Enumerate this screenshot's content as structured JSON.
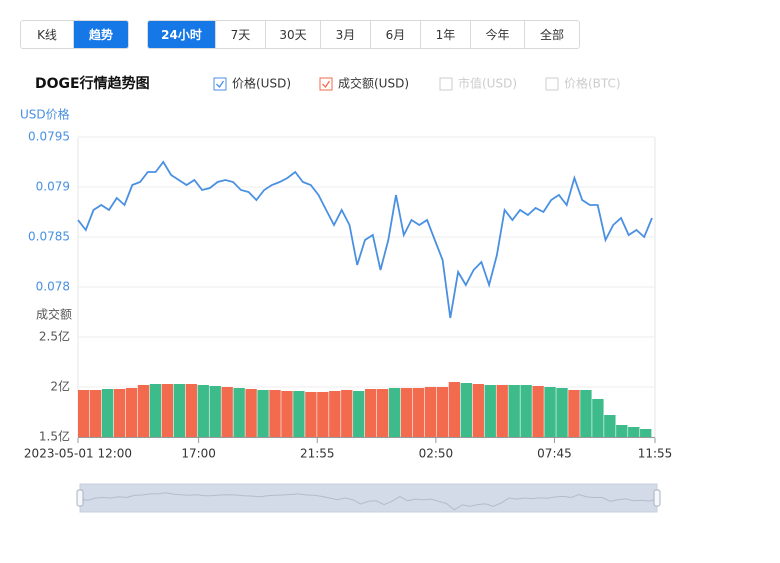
{
  "mode_tabs": [
    "K线",
    "趋势"
  ],
  "range_tabs": [
    "24小时",
    "7天",
    "30天",
    "3月",
    "6月",
    "1年",
    "今年",
    "全部"
  ],
  "title": "DOGE行情趋势图",
  "legend": [
    {
      "label": "价格(USD)",
      "checked": true,
      "color": "#4a90e2"
    },
    {
      "label": "成交额(USD)",
      "checked": true,
      "color": "#f26b4f"
    },
    {
      "label": "市值(USD)",
      "checked": false,
      "color": "#cccccc"
    },
    {
      "label": "价格(BTC)",
      "checked": false,
      "color": "#cccccc"
    }
  ],
  "chart_data": [
    {
      "type": "line",
      "ylabel": "USD价格",
      "color": "#4a90e2",
      "ylim": [
        0.0775,
        0.0795
      ],
      "yticks": [
        0.0795,
        0.079,
        0.0785,
        0.078
      ],
      "grid": true,
      "values": [
        0.07867,
        0.07857,
        0.07877,
        0.07882,
        0.07877,
        0.07889,
        0.07882,
        0.07902,
        0.07905,
        0.07915,
        0.07915,
        0.07925,
        0.07912,
        0.07907,
        0.07902,
        0.07907,
        0.07897,
        0.07899,
        0.07905,
        0.07907,
        0.07905,
        0.07897,
        0.07895,
        0.07887,
        0.07897,
        0.07902,
        0.07905,
        0.07909,
        0.07915,
        0.07905,
        0.07902,
        0.07892,
        0.07877,
        0.07862,
        0.07877,
        0.07862,
        0.07822,
        0.07847,
        0.07852,
        0.07817,
        0.07847,
        0.07892,
        0.07852,
        0.07867,
        0.07862,
        0.07867,
        0.07847,
        0.07827,
        0.07769,
        0.07815,
        0.07802,
        0.07817,
        0.07825,
        0.07802,
        0.07832,
        0.07877,
        0.07867,
        0.07877,
        0.07872,
        0.07879,
        0.07875,
        0.07887,
        0.07892,
        0.07882,
        0.07909,
        0.07887,
        0.07882,
        0.07882,
        0.07847,
        0.07862,
        0.07869,
        0.07852,
        0.07857,
        0.0785,
        0.07869
      ]
    },
    {
      "type": "bar",
      "ylabel": "成交额",
      "ylim": [
        1.5,
        2.5
      ],
      "yticks": [
        {
          "value": 2.5,
          "label": "2.5亿"
        },
        {
          "value": 2,
          "label": "2亿"
        },
        {
          "value": 1.5,
          "label": "1.5亿"
        }
      ],
      "grid": true,
      "xlim": [
        0,
        287
      ],
      "xticks": [
        {
          "value": 0,
          "label": "2023-05-01 12:00"
        },
        {
          "value": 60,
          "label": "17:00"
        },
        {
          "value": 119,
          "label": "21:55"
        },
        {
          "value": 178,
          "label": "02:50"
        },
        {
          "value": 237,
          "label": "07:45"
        },
        {
          "value": 287,
          "label": "11:55"
        }
      ],
      "values": [
        1.97,
        1.97,
        1.98,
        1.98,
        1.99,
        2.02,
        2.03,
        2.03,
        2.03,
        2.03,
        2.02,
        2.01,
        2.0,
        1.99,
        1.98,
        1.97,
        1.97,
        1.96,
        1.96,
        1.95,
        1.95,
        1.96,
        1.97,
        1.96,
        1.98,
        1.98,
        1.99,
        1.99,
        1.99,
        2.0,
        2.0,
        2.05,
        2.04,
        2.03,
        2.02,
        2.02,
        2.02,
        2.02,
        2.01,
        2.0,
        1.99,
        1.97,
        1.97,
        1.88,
        1.72,
        1.62,
        1.6,
        1.58
      ],
      "colors": [
        "#f26b4f",
        "#f26b4f",
        "#3dbb8a",
        "#f26b4f",
        "#f26b4f",
        "#f26b4f",
        "#3dbb8a",
        "#f26b4f",
        "#3dbb8a",
        "#f26b4f",
        "#3dbb8a",
        "#3dbb8a",
        "#f26b4f",
        "#3dbb8a",
        "#f26b4f",
        "#3dbb8a",
        "#f26b4f",
        "#f26b4f",
        "#3dbb8a",
        "#f26b4f",
        "#f26b4f",
        "#f26b4f",
        "#f26b4f",
        "#3dbb8a",
        "#f26b4f",
        "#f26b4f",
        "#3dbb8a",
        "#f26b4f",
        "#f26b4f",
        "#f26b4f",
        "#f26b4f",
        "#f26b4f",
        "#3dbb8a",
        "#f26b4f",
        "#3dbb8a",
        "#f26b4f",
        "#3dbb8a",
        "#3dbb8a",
        "#f26b4f",
        "#3dbb8a",
        "#3dbb8a",
        "#f26b4f",
        "#3dbb8a",
        "#3dbb8a",
        "#3dbb8a",
        "#3dbb8a",
        "#3dbb8a",
        "#3dbb8a"
      ]
    }
  ]
}
